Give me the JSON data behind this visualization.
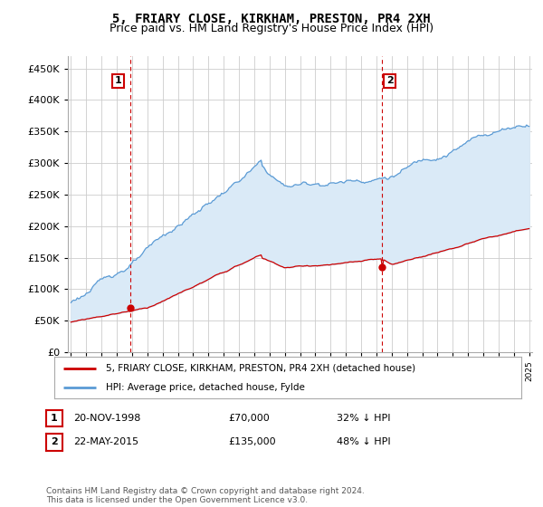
{
  "title": "5, FRIARY CLOSE, KIRKHAM, PRESTON, PR4 2XH",
  "subtitle": "Price paid vs. HM Land Registry's House Price Index (HPI)",
  "title_fontsize": 10,
  "subtitle_fontsize": 9,
  "ylabel_ticks": [
    "£0",
    "£50K",
    "£100K",
    "£150K",
    "£200K",
    "£250K",
    "£300K",
    "£350K",
    "£400K",
    "£450K"
  ],
  "ytick_vals": [
    0,
    50000,
    100000,
    150000,
    200000,
    250000,
    300000,
    350000,
    400000,
    450000
  ],
  "ylim": [
    0,
    470000
  ],
  "xlim_start": 1994.8,
  "xlim_end": 2025.2,
  "hpi_color": "#5b9bd5",
  "hpi_fill_color": "#daeaf7",
  "price_color": "#cc0000",
  "marker_color": "#cc0000",
  "sale1_year": 1998.9,
  "sale1_price": 70000,
  "sale2_year": 2015.38,
  "sale2_price": 135000,
  "legend_label_red": "5, FRIARY CLOSE, KIRKHAM, PRESTON, PR4 2XH (detached house)",
  "legend_label_blue": "HPI: Average price, detached house, Fylde",
  "table_row1_date": "20-NOV-1998",
  "table_row1_price": "£70,000",
  "table_row1_hpi": "32% ↓ HPI",
  "table_row2_date": "22-MAY-2015",
  "table_row2_price": "£135,000",
  "table_row2_hpi": "48% ↓ HPI",
  "footnote": "Contains HM Land Registry data © Crown copyright and database right 2024.\nThis data is licensed under the Open Government Licence v3.0.",
  "bg_color": "#ffffff",
  "grid_color": "#cccccc",
  "annotation_border_color": "#cc0000",
  "vline_color": "#cc0000"
}
